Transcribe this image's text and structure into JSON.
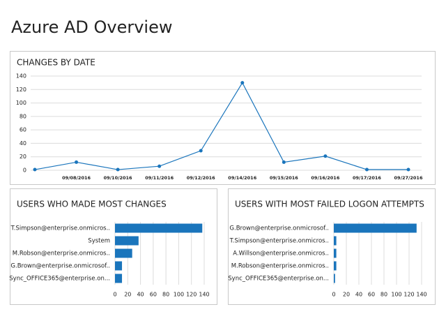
{
  "header": {
    "title": "Azure AD Overview"
  },
  "chart_data": [
    {
      "type": "line",
      "title": "CHANGES BY DATE",
      "x": [
        null,
        "09/08/2016",
        "09/10/2016",
        "09/11/2016",
        "09/12/2016",
        "09/14/2016",
        "09/15/2016",
        "09/16/2016",
        "09/17/2016",
        "09/27/2016"
      ],
      "values": [
        1,
        12,
        1,
        6,
        29,
        130,
        12,
        21,
        1,
        1
      ],
      "color": "#1a75bc",
      "ylim": [
        0,
        140
      ],
      "yticks": [
        0,
        20,
        40,
        60,
        80,
        100,
        120,
        140
      ],
      "grid": true
    },
    {
      "type": "hbar",
      "title": "USERS WHO MADE MOST CHANGES",
      "categories": [
        "T.Simpson@enterprise.onmicros..",
        "System",
        "M.Robson@enterprise.onmicros..",
        "G.Brown@enterprise.onmicrosof..",
        "Sync_OFFICE365@enterprise.on..."
      ],
      "values": [
        137,
        37,
        27,
        11,
        11
      ],
      "color": "#1a75bc",
      "xlim": [
        0,
        140
      ],
      "xticks": [
        0,
        20,
        40,
        60,
        80,
        100,
        120,
        140
      ],
      "grid": true
    },
    {
      "type": "hbar",
      "title": "USERS WITH MOST FAILED LOGON ATTEMPTS",
      "categories": [
        "G.Brown@enterprise.onmicrosof..",
        "T.Simpson@enterprise.onmicros..",
        "A.Willson@enterprise.onmicros..",
        "M.Robson@enterprise.onmicros..",
        "Sync_OFFICE365@enterprise.on..."
      ],
      "values": [
        132,
        4,
        4,
        4,
        2
      ],
      "color": "#1a75bc",
      "xlim": [
        0,
        140
      ],
      "xticks": [
        0,
        20,
        40,
        60,
        80,
        100,
        120,
        140
      ],
      "grid": true
    }
  ]
}
